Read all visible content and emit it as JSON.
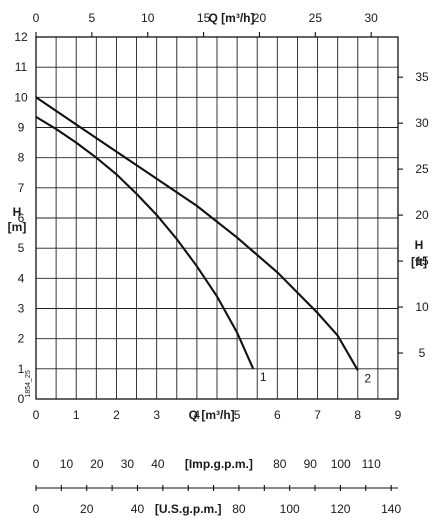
{
  "chart_data": {
    "type": "line",
    "x_bottom": {
      "label": "Q [m³/h]",
      "range": [
        0,
        9
      ],
      "ticks": [
        "0",
        "1",
        "2",
        "3",
        "4",
        "5",
        "6",
        "7",
        "8",
        "9"
      ]
    },
    "x_top": {
      "label": "Q [m³/h]",
      "range": [
        0,
        32.4
      ],
      "ticks": [
        "0",
        "5",
        "10",
        "15",
        "20",
        "25",
        "30"
      ]
    },
    "y_left": {
      "label": [
        "H",
        "[m]"
      ],
      "range": [
        0,
        12
      ],
      "ticks": [
        "0",
        "1",
        "2",
        "3",
        "4",
        "5",
        "6",
        "7",
        "8",
        "9",
        "10",
        "11",
        "12"
      ]
    },
    "y_right": {
      "label": [
        "H",
        "[ft]"
      ],
      "range": [
        0,
        39.37
      ],
      "ticks": [
        "5",
        "10",
        "15",
        "20",
        "25",
        "30",
        "35"
      ]
    },
    "imp_scale": {
      "label": "[Imp.g.p.m.]",
      "range": [
        0,
        118.8
      ],
      "ticks": [
        "0",
        "10",
        "20",
        "30",
        "40",
        "80",
        "90",
        "100",
        "110"
      ]
    },
    "us_scale": {
      "label": "[U.S.g.p.m.]",
      "range": [
        0,
        142.7
      ],
      "ticks": [
        "0",
        "20",
        "40",
        "80",
        "100",
        "120",
        "140"
      ]
    },
    "grid": true,
    "series": [
      {
        "name": "1",
        "x": [
          0,
          0.5,
          1.0,
          1.5,
          2.0,
          2.5,
          3.0,
          3.5,
          4.0,
          4.5,
          5.0,
          5.4
        ],
        "y": [
          9.35,
          8.95,
          8.5,
          8.0,
          7.45,
          6.8,
          6.1,
          5.3,
          4.4,
          3.4,
          2.2,
          1.0
        ]
      },
      {
        "name": "2",
        "x": [
          0,
          1.0,
          2.0,
          3.0,
          4.0,
          5.0,
          6.0,
          7.0,
          7.5,
          8.0
        ],
        "y": [
          10.0,
          9.1,
          8.2,
          7.3,
          6.4,
          5.35,
          4.2,
          2.85,
          2.1,
          0.95
        ]
      }
    ],
    "code_label": "1854_25"
  }
}
